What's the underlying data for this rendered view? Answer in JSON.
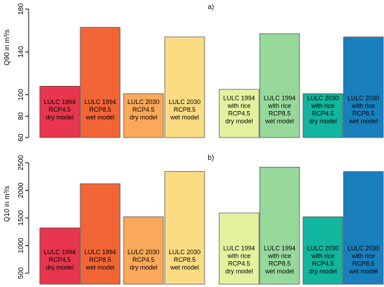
{
  "chart_data": [
    {
      "type": "bar",
      "panel_label": "a)",
      "ylabel": "Q90 in m³/s",
      "ylim": [
        60,
        180
      ],
      "yticks": [
        60,
        80,
        100,
        140,
        180
      ],
      "grid": false,
      "bars": [
        {
          "lines": [
            "LULC 1994",
            "RCP4.5",
            "dry model"
          ],
          "value": 108,
          "color": "#e8364e"
        },
        {
          "lines": [
            "LULC 1994",
            "RCP8.5",
            "wet model"
          ],
          "value": 163,
          "color": "#f26537"
        },
        {
          "lines": [
            "LULC 2030",
            "RCP4.5",
            "dry model"
          ],
          "value": 101,
          "color": "#f9a959"
        },
        {
          "lines": [
            "LULC 2030",
            "RCP8.5",
            "wet model"
          ],
          "value": 154,
          "color": "#fbdc82"
        },
        {
          "lines": [
            "LULC 1994",
            "with rice",
            "RCP4.5",
            "dry model"
          ],
          "value": 105,
          "color": "#e4f2a0"
        },
        {
          "lines": [
            "LULC 1994",
            "with rice",
            "RCP8.5",
            "wet model"
          ],
          "value": 157,
          "color": "#97d99b"
        },
        {
          "lines": [
            "LULC 2030",
            "with rice",
            "RCP4.5",
            "dry model"
          ],
          "value": 101,
          "color": "#12b59e"
        },
        {
          "lines": [
            "LULC 2030",
            "with rice",
            "RCP8.5",
            "wet model"
          ],
          "value": 154,
          "color": "#1a7fbd"
        }
      ]
    },
    {
      "type": "bar",
      "panel_label": "b)",
      "ylabel": "Q10 in m³/s",
      "ylim": [
        300,
        2500
      ],
      "yticks": [
        500,
        1000,
        1500,
        2000,
        2500
      ],
      "grid": false,
      "bars": [
        {
          "lines": [
            "LULC 1994",
            "RCP4.5",
            "dry model"
          ],
          "value": 1320,
          "color": "#e8364e"
        },
        {
          "lines": [
            "LULC 1994",
            "RCP8.5",
            "wet model"
          ],
          "value": 2120,
          "color": "#f26537"
        },
        {
          "lines": [
            "LULC 2030",
            "RCP4.5",
            "dry model"
          ],
          "value": 1520,
          "color": "#f9a959"
        },
        {
          "lines": [
            "LULC 2030",
            "RCP8.5",
            "wet model"
          ],
          "value": 2340,
          "color": "#fbdc82"
        },
        {
          "lines": [
            "LULC 1994",
            "with rice",
            "RCP4.5",
            "dry model"
          ],
          "value": 1590,
          "color": "#e4f2a0"
        },
        {
          "lines": [
            "LULC 1994",
            "with rice",
            "RCP8.5",
            "wet model"
          ],
          "value": 2420,
          "color": "#97d99b"
        },
        {
          "lines": [
            "LULC 2030",
            "with rice",
            "RCP4.5",
            "dry model"
          ],
          "value": 1520,
          "color": "#12b59e"
        },
        {
          "lines": [
            "LULC 2030",
            "with rice",
            "RCP8.5",
            "wet model"
          ],
          "value": 2340,
          "color": "#1a7fbd"
        }
      ]
    }
  ]
}
